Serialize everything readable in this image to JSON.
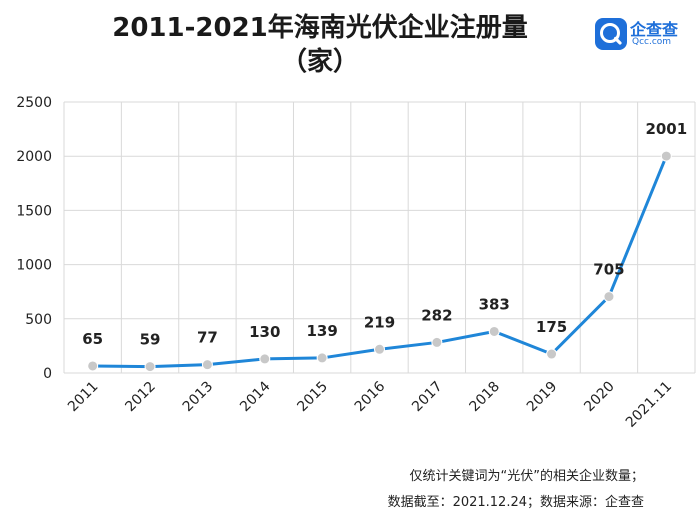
{
  "header": {
    "title_line1": "2011-2021年海南光伏企业注册量",
    "title_line2": "（家）"
  },
  "logo": {
    "icon": "qcc-logo-icon",
    "name_cn": "企查查",
    "name_en": "Qcc.com",
    "color": "#1e6fd9"
  },
  "chart_data": {
    "type": "line",
    "categories": [
      "2011",
      "2012",
      "2013",
      "2014",
      "2015",
      "2016",
      "2017",
      "2018",
      "2019",
      "2020",
      "2021.11"
    ],
    "values": [
      65,
      59,
      77,
      130,
      139,
      219,
      282,
      383,
      175,
      705,
      2001
    ],
    "yticks": [
      "0",
      "500",
      "1000",
      "1500",
      "2000",
      "2500"
    ],
    "ylim": [
      0,
      2500
    ],
    "grid": true,
    "line_color": "#1f86d8",
    "marker_color": "#c8c8c8"
  },
  "footnotes": {
    "line1": "仅统计关键词为“光伏”的相关企业数量；",
    "line2": "数据截至：2021.12.24；数据来源：企查查"
  }
}
